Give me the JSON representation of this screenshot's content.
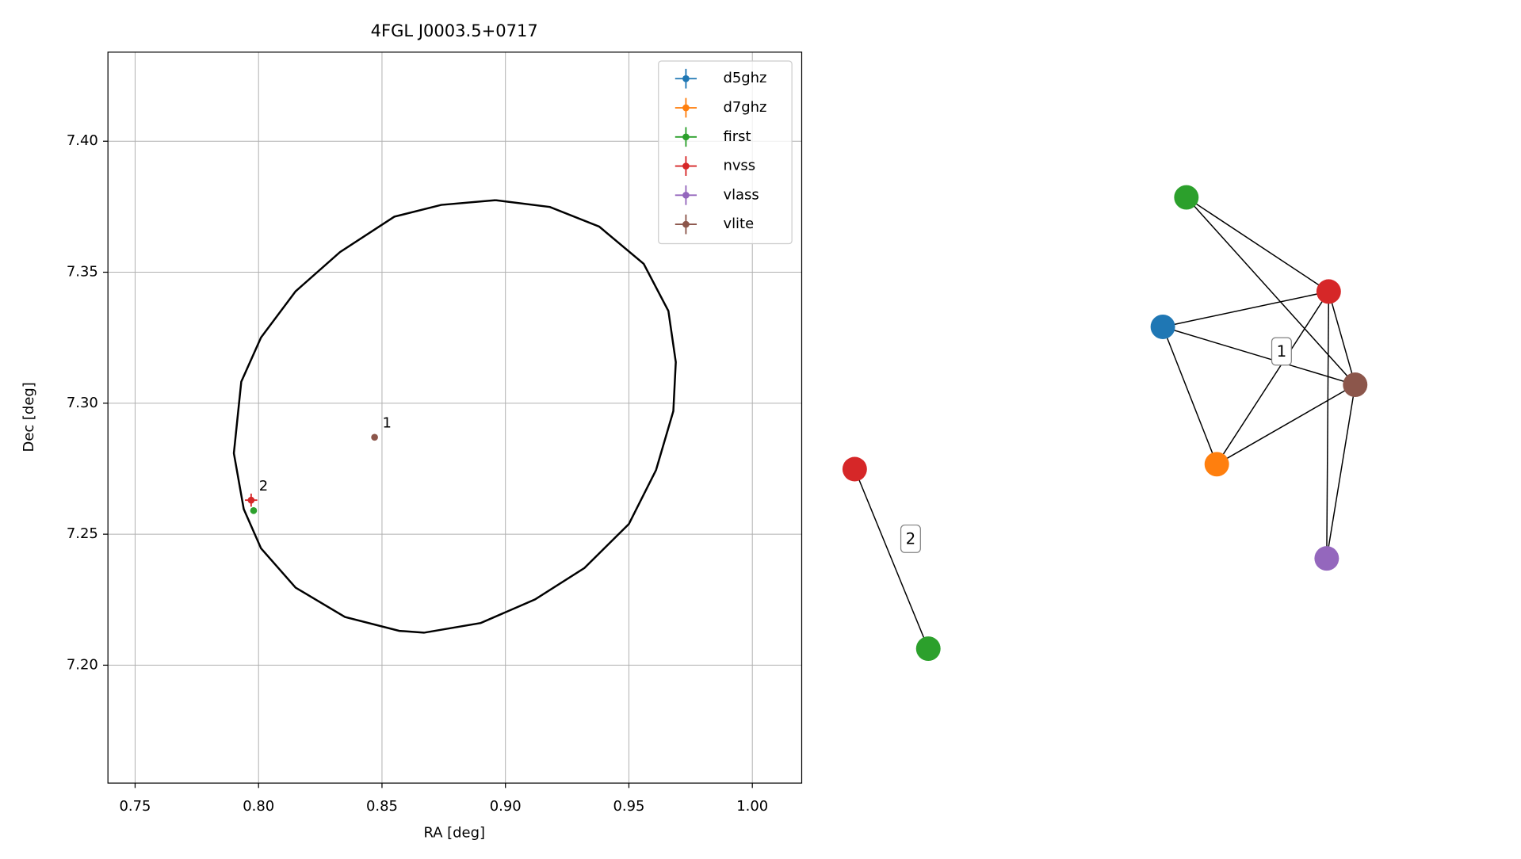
{
  "chart_data": [
    {
      "type": "scatter",
      "title": "4FGL J0003.5+0717",
      "x_label": "RA [deg]",
      "y_label": "Dec [deg]",
      "xlim": [
        0.739,
        1.02
      ],
      "ylim": [
        7.155,
        7.434
      ],
      "xticks": [
        0.75,
        {
          "value": 0.8,
          "label": "0.80"
        },
        0.85,
        {
          "value": 0.9,
          "label": "0.90"
        },
        0.95,
        {
          "value": 1.0,
          "label": "1.00"
        }
      ],
      "yticks": [
        {
          "value": 7.2,
          "label": "7.20"
        },
        7.25,
        {
          "value": 7.3,
          "label": "7.30"
        },
        7.35,
        {
          "value": 7.4,
          "label": "7.40"
        }
      ],
      "grid": true,
      "legend": "upper right",
      "series": [
        {
          "name": "d5ghz",
          "color": "#1f77b4",
          "x": [],
          "values": [],
          "xerr": [],
          "yerr": []
        },
        {
          "name": "d7ghz",
          "color": "#ff7f0e",
          "x": [],
          "values": [],
          "xerr": [],
          "yerr": []
        },
        {
          "name": "first",
          "color": "#2ca02c",
          "x": [
            0.798
          ],
          "values": [
            7.259
          ],
          "xerr": [
            0.0005
          ],
          "yerr": [
            0.0005
          ]
        },
        {
          "name": "nvss",
          "color": "#d62728",
          "x": [
            0.797
          ],
          "values": [
            7.263
          ],
          "xerr": [
            0.0025
          ],
          "yerr": [
            0.0025
          ],
          "point_labels": [
            "2"
          ]
        },
        {
          "name": "vlass",
          "color": "#9467bd",
          "x": [],
          "values": [],
          "xerr": [],
          "yerr": []
        },
        {
          "name": "vlite",
          "color": "#8c564b",
          "x": [
            0.847
          ],
          "values": [
            7.287
          ],
          "xerr": [
            0.0005
          ],
          "yerr": [
            0.0005
          ],
          "point_labels": [
            "1"
          ]
        }
      ],
      "ellipse": {
        "color": "#000000",
        "x": [
          0.896,
          0.874,
          0.855,
          0.833,
          0.815,
          0.801,
          0.793,
          0.79,
          0.794,
          0.801,
          0.815,
          0.835,
          0.857,
          0.867,
          0.89,
          0.912,
          0.932,
          0.95,
          0.961,
          0.968,
          0.969,
          0.966,
          0.956,
          0.938,
          0.918,
          0.896
        ],
        "y": [
          7.3775,
          7.3757,
          7.3712,
          7.3577,
          7.3427,
          7.3251,
          7.3082,
          7.2809,
          7.2596,
          7.2446,
          7.2296,
          7.2184,
          7.2131,
          7.2124,
          7.2161,
          7.2251,
          7.2371,
          7.2539,
          7.2745,
          7.297,
          7.3157,
          7.3352,
          7.3532,
          7.3674,
          7.3749,
          7.3775
        ]
      }
    },
    {
      "type": "graph",
      "nodes": [
        {
          "color": "#d62728"
        },
        {
          "color": "#2ca02c"
        },
        {
          "color": "#2ca02c"
        },
        {
          "color": "#d62728"
        },
        {
          "color": "#1f77b4"
        },
        {
          "color": "#8c564b"
        },
        {
          "color": "#ff7f0e"
        },
        {
          "color": "#9467bd"
        }
      ],
      "edges": [
        [
          0,
          1
        ],
        [
          2,
          3
        ],
        [
          2,
          5
        ],
        [
          3,
          4
        ],
        [
          3,
          5
        ],
        [
          3,
          6
        ],
        [
          3,
          7
        ],
        [
          4,
          5
        ],
        [
          4,
          6
        ],
        [
          6,
          5
        ],
        [
          5,
          7
        ]
      ],
      "cluster_labels": [
        "2",
        "1"
      ]
    }
  ]
}
